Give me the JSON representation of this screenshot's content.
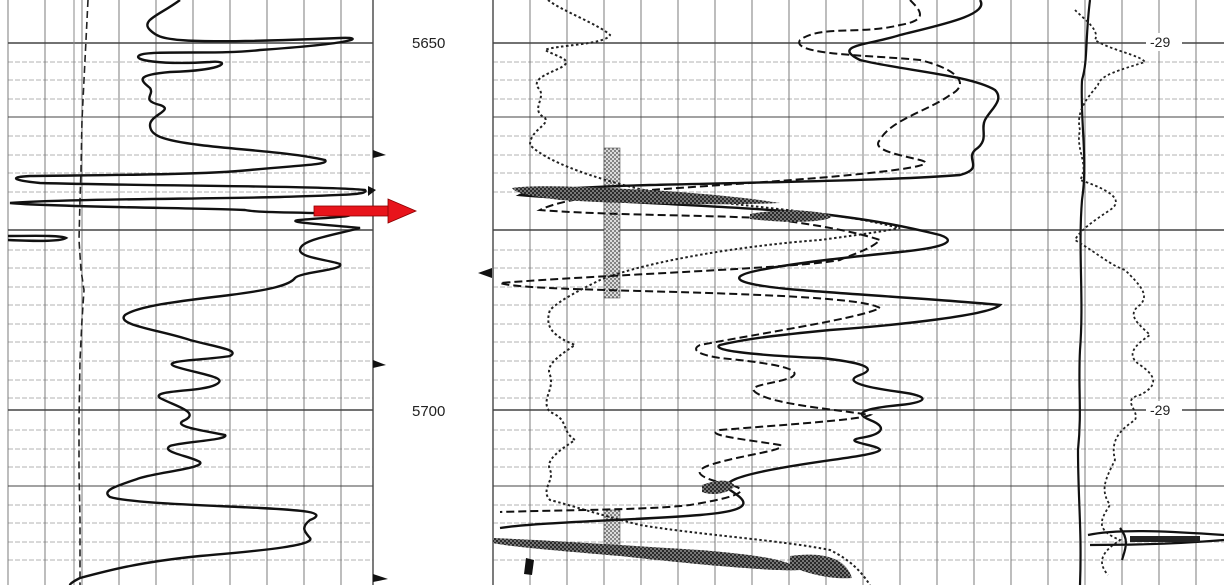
{
  "depth_labels": {
    "upper": "5650",
    "lower": "5700"
  },
  "scale_labels": {
    "upper": "-29",
    "lower": "-29"
  },
  "arrow_color": "#e8141b",
  "arrow_icon": "right-arrow-icon"
}
